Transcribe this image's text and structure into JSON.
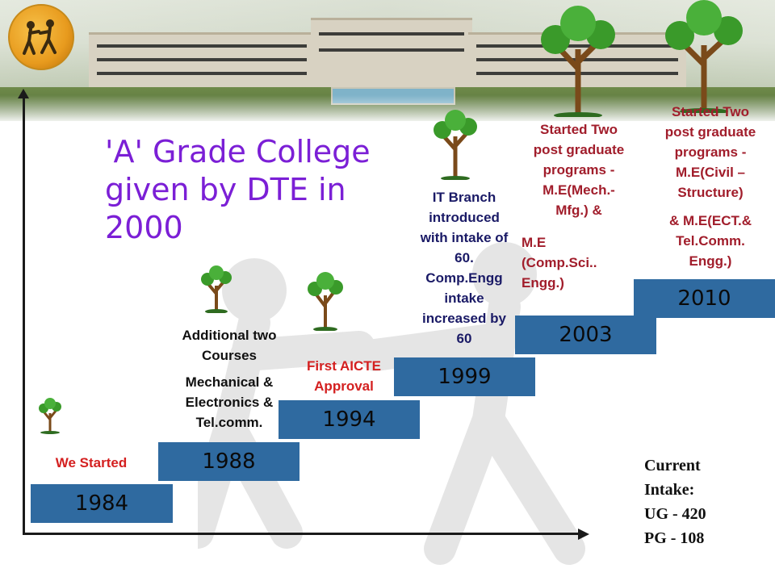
{
  "title_lines": [
    "'A' Grade College",
    "given by DTE in",
    "2000"
  ],
  "milestones": [
    {
      "year": "1984",
      "label": "We Started"
    },
    {
      "year": "1988",
      "label_lines": [
        "Additional two",
        "Courses",
        "Mechanical &",
        "Electronics &",
        "Tel.comm."
      ]
    },
    {
      "year": "1994",
      "label_lines": [
        "First AICTE",
        "Approval"
      ]
    },
    {
      "year": "1999",
      "label_lines": [
        "IT Branch",
        "introduced",
        "with intake of",
        "60.",
        "Comp.Engg",
        "intake",
        "increased by",
        "60"
      ]
    },
    {
      "year": "2003",
      "label_lines": [
        "Started Two",
        "post graduate",
        "programs -",
        "M.E(Mech.-",
        "Mfg.) &",
        "M.E",
        "(Comp.Sci..",
        "Engg.)"
      ]
    },
    {
      "year": "2010",
      "label_lines": [
        "Started Two",
        "post graduate",
        "programs -",
        "M.E(Civil –",
        "Structure)",
        "& M.E(ECT.&",
        "Tel.Comm.",
        "Engg.)"
      ]
    }
  ],
  "intake": {
    "heading1": "Current",
    "heading2": "Intake:",
    "ug": "UG - 420",
    "pg": "PG - 108"
  },
  "colors": {
    "year_box": "#2f6aa0",
    "title": "#7b1fd6",
    "red_label": "#d42020",
    "maroon_label": "#a11d2b"
  }
}
